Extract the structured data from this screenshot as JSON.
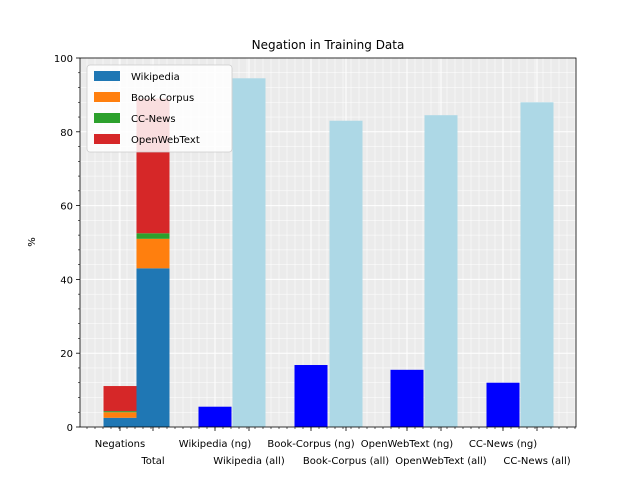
{
  "chart_data": {
    "type": "bar",
    "title": "Negation in Training Data",
    "xlabel": "",
    "ylabel": "%",
    "ylim": [
      0,
      100
    ],
    "yticks": [
      0,
      20,
      40,
      60,
      80,
      100
    ],
    "grid": true,
    "legend_position": "top-left",
    "categories": [
      "Negations",
      "Total",
      "Wikipedia (ng)",
      "Wikipedia (all)",
      "Book-Corpus (ng)",
      "Book-Corpus (all)",
      "OpenWebText (ng)",
      "OpenWebText (all)",
      "CC-News (ng)",
      "CC-News (all)"
    ],
    "stacked_bars": [
      {
        "category": "Negations",
        "segments": [
          {
            "series": "Wikipedia",
            "value": 2.5
          },
          {
            "series": "Book Corpus",
            "value": 1.5
          },
          {
            "series": "CC-News",
            "value": 0.3
          },
          {
            "series": "OpenWebText",
            "value": 6.8
          }
        ]
      },
      {
        "category": "Total",
        "segments": [
          {
            "series": "Wikipedia",
            "value": 43
          },
          {
            "series": "Book Corpus",
            "value": 8
          },
          {
            "series": "CC-News",
            "value": 1.5
          },
          {
            "series": "OpenWebText",
            "value": 36.5
          }
        ]
      }
    ],
    "series": [
      {
        "name": "Wikipedia",
        "color": "#1f77b4"
      },
      {
        "name": "Book Corpus",
        "color": "#ff7f0e"
      },
      {
        "name": "CC-News",
        "color": "#2ca02c"
      },
      {
        "name": "OpenWebText",
        "color": "#d62728"
      }
    ],
    "simple_bars": [
      {
        "category": "Wikipedia (ng)",
        "value": 5.5,
        "color": "#0000ff"
      },
      {
        "category": "Wikipedia (all)",
        "value": 94.5,
        "color": "#add8e6"
      },
      {
        "category": "Book-Corpus (ng)",
        "value": 16.8,
        "color": "#0000ff"
      },
      {
        "category": "Book-Corpus (all)",
        "value": 83,
        "color": "#add8e6"
      },
      {
        "category": "OpenWebText (ng)",
        "value": 15.5,
        "color": "#0000ff"
      },
      {
        "category": "OpenWebText (all)",
        "value": 84.5,
        "color": "#add8e6"
      },
      {
        "category": "CC-News (ng)",
        "value": 12,
        "color": "#0000ff"
      },
      {
        "category": "CC-News (all)",
        "value": 88,
        "color": "#add8e6"
      }
    ]
  }
}
